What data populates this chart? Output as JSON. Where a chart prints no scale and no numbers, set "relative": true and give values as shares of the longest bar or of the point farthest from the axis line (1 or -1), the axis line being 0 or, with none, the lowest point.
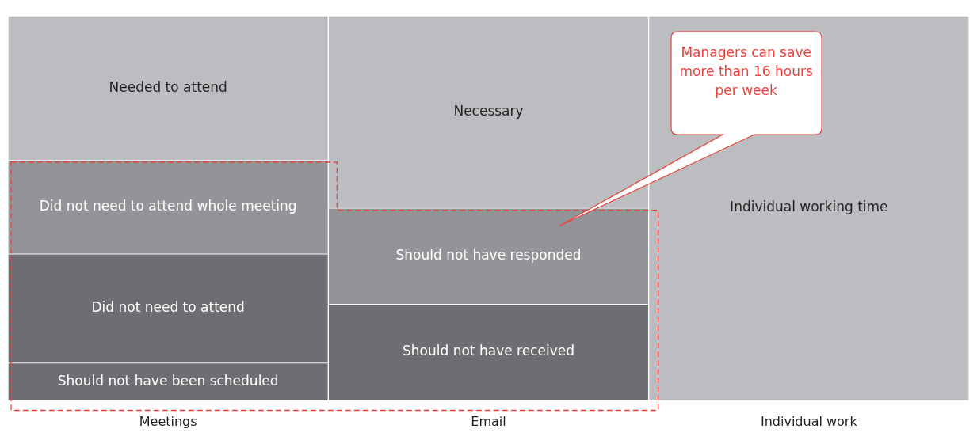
{
  "chart_data": {
    "type": "bar",
    "stacked": true,
    "relative": true,
    "categories": [
      "Meetings",
      "Email",
      "Individual work"
    ],
    "series": [
      {
        "name": "Should not have been scheduled",
        "color": "#6d6e71",
        "values": [
          0.097,
          null,
          null
        ]
      },
      {
        "name": "Did not need to attend",
        "color": "#6d6e71",
        "values": [
          0.284,
          null,
          null
        ]
      },
      {
        "name": "Did not need to attend whole meeting",
        "color": "#939497",
        "values": [
          0.243,
          null,
          null
        ]
      },
      {
        "name": "Needed to attend",
        "color": "#bcbdc0",
        "values": [
          0.376,
          null,
          null
        ]
      },
      {
        "name": "Should not have received",
        "color": "#6d6e71",
        "values": [
          null,
          0.25,
          null
        ]
      },
      {
        "name": "Should not have responded",
        "color": "#939497",
        "values": [
          null,
          0.25,
          null
        ]
      },
      {
        "name": "Necessary",
        "color": "#bcbdc0",
        "values": [
          null,
          0.5,
          null
        ]
      },
      {
        "name": "Individual working time",
        "color": "#bcbdc0",
        "values": [
          null,
          null,
          1
        ]
      }
    ],
    "annotations": [
      "Managers can save more than 16 hours per week"
    ]
  }
}
